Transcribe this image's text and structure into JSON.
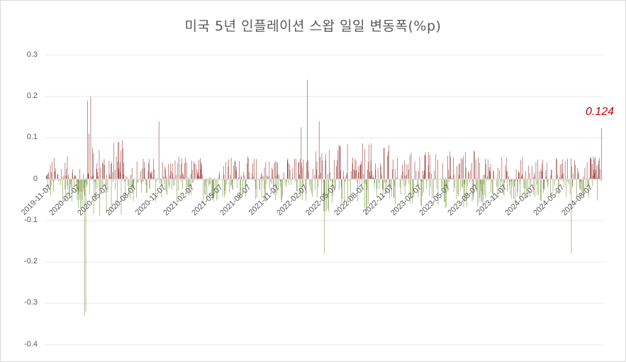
{
  "chart_data": {
    "type": "bar",
    "title": "미국 5년 인플레이션 스왑 일일 변동폭(%p)",
    "xlabel": "",
    "ylabel": "",
    "ylim": [
      -0.4,
      0.3
    ],
    "yticks": [
      "0.3",
      "0.2",
      "0.1",
      "0",
      "-0.1",
      "-0.2",
      "-0.3",
      "-0.4"
    ],
    "xtick_labels": [
      "2019-11-07",
      "2020-02-07",
      "2020-05-07",
      "2020-08-07",
      "2020-11-07",
      "2021-02-07",
      "2021-05-07",
      "2021-08-07",
      "2021-11-07",
      "2022-02-07",
      "2022-05-07",
      "2022-08-07",
      "2022-11-07",
      "2023-02-07",
      "2023-05-07",
      "2023-08-07",
      "2023-11-07",
      "2024-02-07",
      "2024-05-07",
      "2024-08-07"
    ],
    "grid": true,
    "legend": "none",
    "colors": {
      "positive": "#943634",
      "negative": "#77933C",
      "grid": "#f0f0f0",
      "axis": "#d9d9d9",
      "annotation": "#c00000"
    },
    "annotation": {
      "text": "0.124",
      "target": "last bar"
    },
    "series": [
      {
        "name": "daily change",
        "x_range": [
          "2019-11-07",
          "2024-10"
        ],
        "notable_points": [
          {
            "date": "~2020-03",
            "value": 0.19
          },
          {
            "date": "~2020-03",
            "value": 0.2
          },
          {
            "date": "~2020-03",
            "value": -0.33
          },
          {
            "date": "~2020-03",
            "value": -0.32
          },
          {
            "date": "~2020-03",
            "value": -0.15
          },
          {
            "date": "~2020-12",
            "value": 0.14
          },
          {
            "date": "~2022-03",
            "value": 0.24
          },
          {
            "date": "~2022-03",
            "value": 0.14
          },
          {
            "date": "~2022-06",
            "value": -0.18
          },
          {
            "date": "~2024-08",
            "value": -0.18
          },
          {
            "date": "~2024-10",
            "value": 0.124
          }
        ]
      }
    ]
  }
}
